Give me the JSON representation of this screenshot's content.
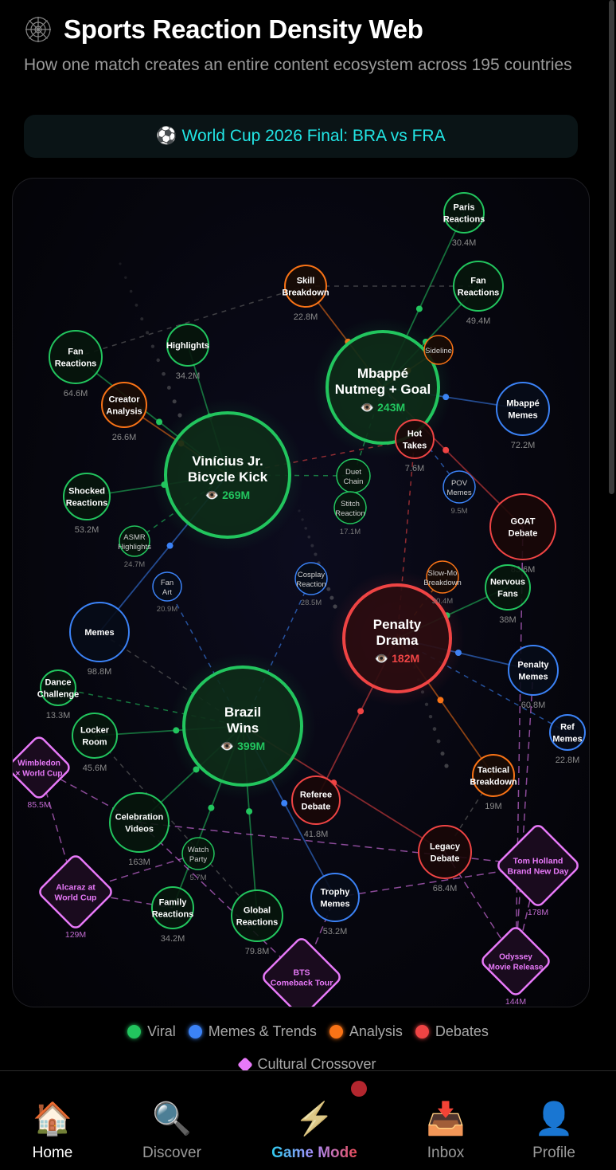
{
  "header": {
    "title": "Sports Reaction Density Web",
    "subtitle": "How one match creates an entire content ecosystem across 195 countries",
    "icon": "spider-web-icon"
  },
  "match": {
    "icon": "⚽",
    "label": "World Cup 2026 Final: BRA vs FRA"
  },
  "colors": {
    "viral": "#22c55e",
    "memes": "#3b82f6",
    "analysis": "#f97316",
    "debate": "#ef4444",
    "crossover": "#e879f9"
  },
  "hub_value_icon": "👁️",
  "nodes": [
    {
      "id": "vinicius",
      "label": "Vinícius Jr.\nBicycle Kick",
      "value": "269M",
      "category": "viral",
      "hub": true
    },
    {
      "id": "mbappe",
      "label": "Mbappé\nNutmeg + Goal",
      "value": "243M",
      "category": "viral",
      "hub": true
    },
    {
      "id": "penalty",
      "label": "Penalty\nDrama",
      "value": "182M",
      "category": "debate",
      "hub": true
    },
    {
      "id": "brazil",
      "label": "Brazil\nWins",
      "value": "399M",
      "category": "viral",
      "hub": true
    },
    {
      "id": "paris",
      "label": "Paris\nReactions",
      "value": "30.4M",
      "category": "viral"
    },
    {
      "id": "fanR",
      "label": "Fan\nReactions",
      "value": "49.4M",
      "category": "viral"
    },
    {
      "id": "skill",
      "label": "Skill\nBreakdown",
      "value": "22.8M",
      "category": "analysis"
    },
    {
      "id": "fanL",
      "label": "Fan\nReactions",
      "value": "64.6M",
      "category": "viral"
    },
    {
      "id": "highlights",
      "label": "Highlights",
      "value": "34.2M",
      "category": "viral"
    },
    {
      "id": "creator",
      "label": "Creator\nAnalysis",
      "value": "26.6M",
      "category": "analysis"
    },
    {
      "id": "sideline",
      "label": "Sideline",
      "value": "",
      "category": "analysis"
    },
    {
      "id": "hot",
      "label": "Hot\nTakes",
      "value": "7.6M",
      "category": "debate"
    },
    {
      "id": "mmemes",
      "label": "Mbappé\nMemes",
      "value": "72.2M",
      "category": "memes"
    },
    {
      "id": "duet",
      "label": "Duet\nChain",
      "value": "",
      "category": "viral"
    },
    {
      "id": "stitch",
      "label": "Stitch\nReaction",
      "value": "17.1M",
      "category": "viral"
    },
    {
      "id": "pov",
      "label": "POV\nMemes",
      "value": "9.5M",
      "category": "memes"
    },
    {
      "id": "goat",
      "label": "GOAT\nDebate",
      "value": "83.6M",
      "category": "debate"
    },
    {
      "id": "shocked",
      "label": "Shocked\nReactions",
      "value": "53.2M",
      "category": "viral"
    },
    {
      "id": "asmr",
      "label": "ASMR\nHighlights",
      "value": "24.7M",
      "category": "viral"
    },
    {
      "id": "fanart",
      "label": "Fan\nArt",
      "value": "20.9M",
      "category": "memes"
    },
    {
      "id": "cosplay",
      "label": "Cosplay\nReaction",
      "value": "28.5M",
      "category": "memes"
    },
    {
      "id": "slowmo",
      "label": "Slow-Mo\nBreakdown",
      "value": "30.4M",
      "category": "analysis"
    },
    {
      "id": "nervous",
      "label": "Nervous\nFans",
      "value": "38M",
      "category": "viral"
    },
    {
      "id": "memes",
      "label": "Memes",
      "value": "98.8M",
      "category": "memes"
    },
    {
      "id": "pmemes",
      "label": "Penalty\nMemes",
      "value": "60.8M",
      "category": "memes"
    },
    {
      "id": "refmemes",
      "label": "Ref\nMemes",
      "value": "22.8M",
      "category": "memes"
    },
    {
      "id": "dance",
      "label": "Dance\nChallenge",
      "value": "13.3M",
      "category": "viral"
    },
    {
      "id": "locker",
      "label": "Locker\nRoom",
      "value": "45.6M",
      "category": "viral"
    },
    {
      "id": "wimbledon",
      "label": "Wimbledon\n× World Cup",
      "value": "85.5M",
      "category": "crossover"
    },
    {
      "id": "tactical",
      "label": "Tactical\nBreakdown",
      "value": "19M",
      "category": "analysis"
    },
    {
      "id": "referee",
      "label": "Referee\nDebate",
      "value": "41.8M",
      "category": "debate"
    },
    {
      "id": "celebration",
      "label": "Celebration\nVideos",
      "value": "163M",
      "category": "viral"
    },
    {
      "id": "watch",
      "label": "Watch\nParty",
      "value": "5.7M",
      "category": "viral"
    },
    {
      "id": "legacy",
      "label": "Legacy\nDebate",
      "value": "68.4M",
      "category": "debate"
    },
    {
      "id": "tom",
      "label": "Tom Holland\nBrand New Day",
      "value": "178M",
      "category": "crossover"
    },
    {
      "id": "alcaraz",
      "label": "Alcaraz at\nWorld Cup",
      "value": "129M",
      "category": "crossover"
    },
    {
      "id": "family",
      "label": "Family\nReactions",
      "value": "34.2M",
      "category": "viral"
    },
    {
      "id": "trophy",
      "label": "Trophy\nMemes",
      "value": "53.2M",
      "category": "memes"
    },
    {
      "id": "global",
      "label": "Global\nReactions",
      "value": "79.8M",
      "category": "viral"
    },
    {
      "id": "bts",
      "label": "BTS\nComeback Tour",
      "value": "",
      "category": "crossover"
    },
    {
      "id": "odyssey",
      "label": "Odyssey\nMovie Release",
      "value": "144M",
      "category": "crossover"
    }
  ],
  "edges": [
    [
      "vinicius",
      "fanL",
      "solid"
    ],
    [
      "vinicius",
      "creator",
      "solid"
    ],
    [
      "vinicius",
      "highlights",
      "solid"
    ],
    [
      "vinicius",
      "shocked",
      "solid"
    ],
    [
      "vinicius",
      "memes",
      "solid"
    ],
    [
      "vinicius",
      "asmr",
      "dashed"
    ],
    [
      "vinicius",
      "duet",
      "dashed"
    ],
    [
      "vinicius",
      "hot",
      "dashed"
    ],
    [
      "mbappe",
      "paris",
      "solid"
    ],
    [
      "mbappe",
      "fanR",
      "solid"
    ],
    [
      "mbappe",
      "skill",
      "solid"
    ],
    [
      "mbappe",
      "mmemes",
      "solid"
    ],
    [
      "mbappe",
      "goat",
      "solid"
    ],
    [
      "mbappe",
      "duet",
      "dashed"
    ],
    [
      "mbappe",
      "pov",
      "dashed"
    ],
    [
      "mbappe",
      "sideline",
      "solid"
    ],
    [
      "penalty",
      "nervous",
      "solid"
    ],
    [
      "penalty",
      "pmemes",
      "solid"
    ],
    [
      "penalty",
      "refmemes",
      "dashed"
    ],
    [
      "penalty",
      "tactical",
      "solid"
    ],
    [
      "penalty",
      "referee",
      "solid"
    ],
    [
      "penalty",
      "hot",
      "dashed"
    ],
    [
      "penalty",
      "slowmo",
      "dashed"
    ],
    [
      "brazil",
      "locker",
      "solid"
    ],
    [
      "brazil",
      "celebration",
      "solid"
    ],
    [
      "brazil",
      "family",
      "solid"
    ],
    [
      "brazil",
      "global",
      "solid"
    ],
    [
      "brazil",
      "trophy",
      "solid"
    ],
    [
      "brazil",
      "fanart",
      "dashed"
    ],
    [
      "brazil",
      "memes",
      "dashed"
    ],
    [
      "brazil",
      "dance",
      "dashed"
    ],
    [
      "brazil",
      "cosplay",
      "dashed"
    ],
    [
      "brazil",
      "legacy",
      "solid"
    ],
    [
      "fanL",
      "skill",
      "dashed"
    ],
    [
      "skill",
      "fanR",
      "dashed"
    ],
    [
      "goat",
      "odyssey",
      "dashed"
    ],
    [
      "tactical",
      "legacy",
      "dashed"
    ],
    [
      "locker",
      "global",
      "dashed"
    ],
    [
      "wimbledon",
      "alcaraz",
      "dashed"
    ],
    [
      "wimbledon",
      "celebration",
      "dashed"
    ],
    [
      "celebration",
      "tom",
      "dashed"
    ],
    [
      "alcaraz",
      "family",
      "dashed"
    ],
    [
      "alcaraz",
      "watch",
      "dashed"
    ],
    [
      "trophy",
      "tom",
      "dashed"
    ],
    [
      "bts",
      "trophy",
      "dashed"
    ],
    [
      "bts",
      "celebration",
      "dashed"
    ],
    [
      "legacy",
      "odyssey",
      "dashed"
    ],
    [
      "tom",
      "odyssey",
      "dashed"
    ],
    [
      "pmemes",
      "odyssey",
      "dashed"
    ]
  ],
  "legend": [
    {
      "label": "Viral",
      "category": "viral"
    },
    {
      "label": "Memes & Trends",
      "category": "memes"
    },
    {
      "label": "Analysis",
      "category": "analysis"
    },
    {
      "label": "Debates",
      "category": "debate"
    },
    {
      "label": "Cultural Crossover",
      "category": "crossover"
    }
  ],
  "nav": [
    {
      "icon": "🏠",
      "label": "Home",
      "name": "home"
    },
    {
      "icon": "🔍",
      "label": "Discover",
      "name": "discover"
    },
    {
      "icon": "⚡",
      "label": "Game Mode",
      "name": "game-mode"
    },
    {
      "icon": "📥",
      "label": "Inbox",
      "name": "inbox"
    },
    {
      "icon": "👤",
      "label": "Profile",
      "name": "profile"
    }
  ]
}
